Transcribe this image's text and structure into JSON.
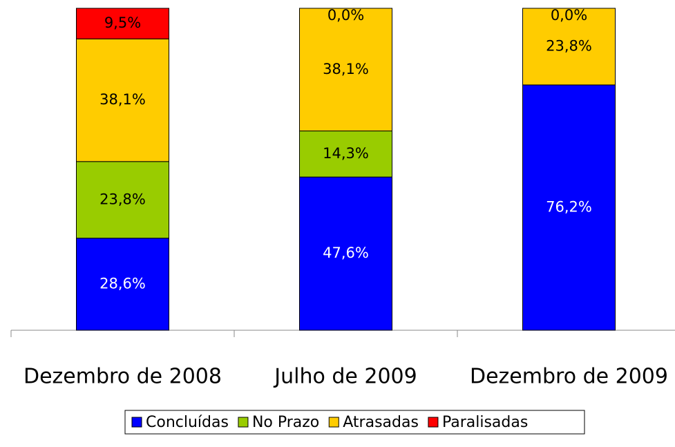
{
  "chart_data": {
    "type": "stacked_bar",
    "categories": [
      "Dezembro de 2008",
      "Julho de 2009",
      "Dezembro de 2009"
    ],
    "series": [
      {
        "name": "Concluídas",
        "color": "#0000ff",
        "values": [
          28.6,
          47.6,
          76.2
        ],
        "value_labels": [
          "28,6%",
          "47,6%",
          "76,2%"
        ],
        "label_color": "#ffffff"
      },
      {
        "name": "No Prazo",
        "color": "#99cc00",
        "values": [
          23.8,
          14.3,
          null
        ],
        "value_labels": [
          "23,8%",
          "14,3%",
          null
        ],
        "label_color": "#000000"
      },
      {
        "name": "Atrasadas",
        "color": "#ffcc00",
        "values": [
          38.1,
          38.1,
          23.8
        ],
        "value_labels": [
          "38,1%",
          "38,1%",
          "23,8%"
        ],
        "label_color": "#000000"
      },
      {
        "name": "Paralisadas",
        "color": "#ff0000",
        "values": [
          9.5,
          0.0,
          0.0
        ],
        "value_labels": [
          "9,5%",
          "0,0%",
          "0,0%"
        ],
        "label_color": "#000000"
      }
    ],
    "ylim": [
      0,
      100
    ]
  }
}
